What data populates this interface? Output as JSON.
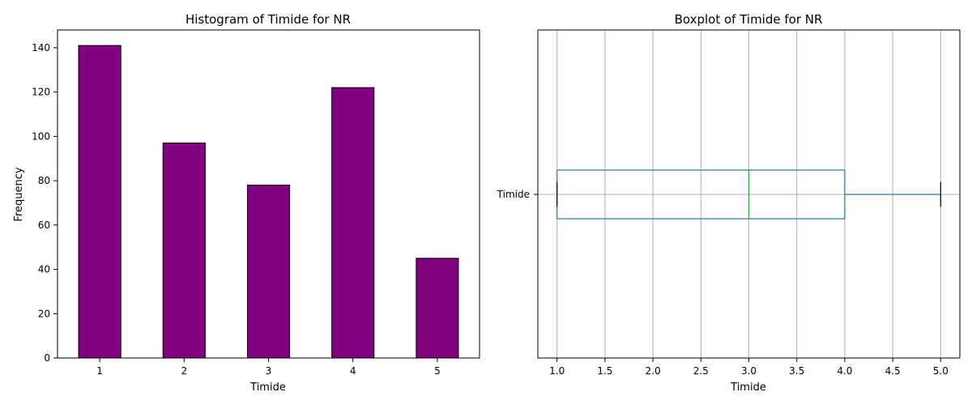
{
  "chart_data": [
    {
      "type": "bar",
      "title": "Histogram of Timide for NR",
      "xlabel": "Timide",
      "ylabel": "Frequency",
      "categories": [
        "1",
        "2",
        "3",
        "4",
        "5"
      ],
      "values": [
        141,
        97,
        78,
        122,
        45
      ],
      "ylim": [
        0,
        148
      ],
      "yticks": [
        0,
        20,
        40,
        60,
        80,
        100,
        120,
        140
      ],
      "grid": false,
      "bar_color": "#800080",
      "edge_color": "#000000"
    },
    {
      "type": "box",
      "title": "Boxplot of Timide for NR",
      "xlabel": "Timide",
      "category": "Timide",
      "min": 1.0,
      "q1": 1.0,
      "median": 3.0,
      "q3": 4.0,
      "max": 5.0,
      "xlim": [
        0.8,
        5.2
      ],
      "xticks": [
        "1.0",
        "1.5",
        "2.0",
        "2.5",
        "3.0",
        "3.5",
        "4.0",
        "4.5",
        "5.0"
      ],
      "grid": true,
      "box_color": "#1f77b4",
      "median_color": "#2ca02c"
    }
  ]
}
